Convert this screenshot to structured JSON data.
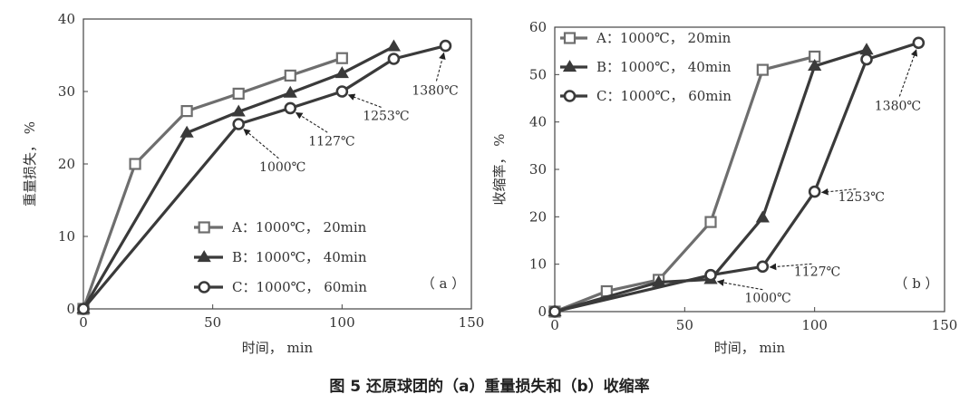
{
  "caption": "图 5  还原球团的（a）重量损失和（b）收缩率",
  "colors": {
    "A": "#6e6e6e",
    "B": "#3a3a3a",
    "C": "#3a3a3a",
    "axis": "#444444",
    "annotation": "#222222"
  },
  "chart_data": [
    {
      "type": "line",
      "panel_label": "（ a ）",
      "xlabel": "时间， min",
      "ylabel": "重量损失， %",
      "xlim": [
        0,
        150
      ],
      "ylim": [
        0,
        40
      ],
      "x_ticks": [
        "0",
        "50",
        "100",
        "150"
      ],
      "y_ticks": [
        "0",
        "10",
        "20",
        "30",
        "40"
      ],
      "legend_position": "bottom-left",
      "series": [
        {
          "name": "A：1000℃， 20min",
          "marker": "square",
          "points": [
            [
              0,
              0
            ],
            [
              20,
              20
            ],
            [
              40,
              27.3
            ],
            [
              60,
              29.7
            ],
            [
              80,
              32.2
            ],
            [
              100,
              34.6
            ]
          ]
        },
        {
          "name": "B：1000℃， 40min",
          "marker": "triangle",
          "points": [
            [
              0,
              0
            ],
            [
              40,
              24.3
            ],
            [
              60,
              27.2
            ],
            [
              80,
              29.8
            ],
            [
              100,
              32.5
            ],
            [
              120,
              36.2
            ]
          ]
        },
        {
          "name": "C：1000℃， 60min",
          "marker": "circle",
          "points": [
            [
              0,
              0
            ],
            [
              60,
              25.5
            ],
            [
              80,
              27.7
            ],
            [
              100,
              30.0
            ],
            [
              120,
              34.5
            ],
            [
              140,
              36.3
            ]
          ]
        }
      ],
      "annotations": [
        {
          "text": "1000℃",
          "point": [
            60,
            25.5
          ],
          "label_at": [
            77,
            19.6
          ]
        },
        {
          "text": "1127℃",
          "point": [
            80,
            27.7
          ],
          "label_at": [
            96,
            23.2
          ]
        },
        {
          "text": "1253℃",
          "point": [
            100,
            30.0
          ],
          "label_at": [
            117,
            26.7
          ]
        },
        {
          "text": "1380℃",
          "point": [
            140,
            36.3
          ],
          "label_at": [
            136,
            30.2
          ]
        }
      ]
    },
    {
      "type": "line",
      "panel_label": "（ b ）",
      "xlabel": "时间， min",
      "ylabel": "收缩率， %",
      "xlim": [
        0,
        150
      ],
      "ylim": [
        0,
        60
      ],
      "x_ticks": [
        "0",
        "50",
        "100",
        "150"
      ],
      "y_ticks": [
        "0",
        "10",
        "20",
        "30",
        "40",
        "50",
        "60"
      ],
      "legend_position": "top-left",
      "series": [
        {
          "name": "A：1000℃， 20min",
          "marker": "square",
          "points": [
            [
              0,
              0
            ],
            [
              20,
              4.3
            ],
            [
              40,
              6.7
            ],
            [
              60,
              18.9
            ],
            [
              80,
              51.0
            ],
            [
              100,
              53.8
            ]
          ]
        },
        {
          "name": "B：1000℃， 40min",
          "marker": "triangle",
          "points": [
            [
              0,
              0
            ],
            [
              40,
              6.2
            ],
            [
              60,
              6.8
            ],
            [
              80,
              19.8
            ],
            [
              100,
              51.8
            ],
            [
              120,
              55.2
            ]
          ]
        },
        {
          "name": "C：1000℃， 60min",
          "marker": "circle",
          "points": [
            [
              0,
              0
            ],
            [
              60,
              7.7
            ],
            [
              80,
              9.5
            ],
            [
              100,
              25.3
            ],
            [
              120,
              53.2
            ],
            [
              140,
              56.7
            ]
          ]
        }
      ],
      "annotations": [
        {
          "text": "1000℃",
          "point": [
            60,
            6.8
          ],
          "label_at": [
            82,
            3.0
          ]
        },
        {
          "text": "1127℃",
          "point": [
            80,
            9.5
          ],
          "label_at": [
            101,
            8.5
          ]
        },
        {
          "text": "1253℃",
          "point": [
            100,
            25.3
          ],
          "label_at": [
            118,
            24.3
          ]
        },
        {
          "text": "1380℃",
          "point": [
            140,
            56.7
          ],
          "label_at": [
            132,
            43.5
          ]
        }
      ]
    }
  ]
}
